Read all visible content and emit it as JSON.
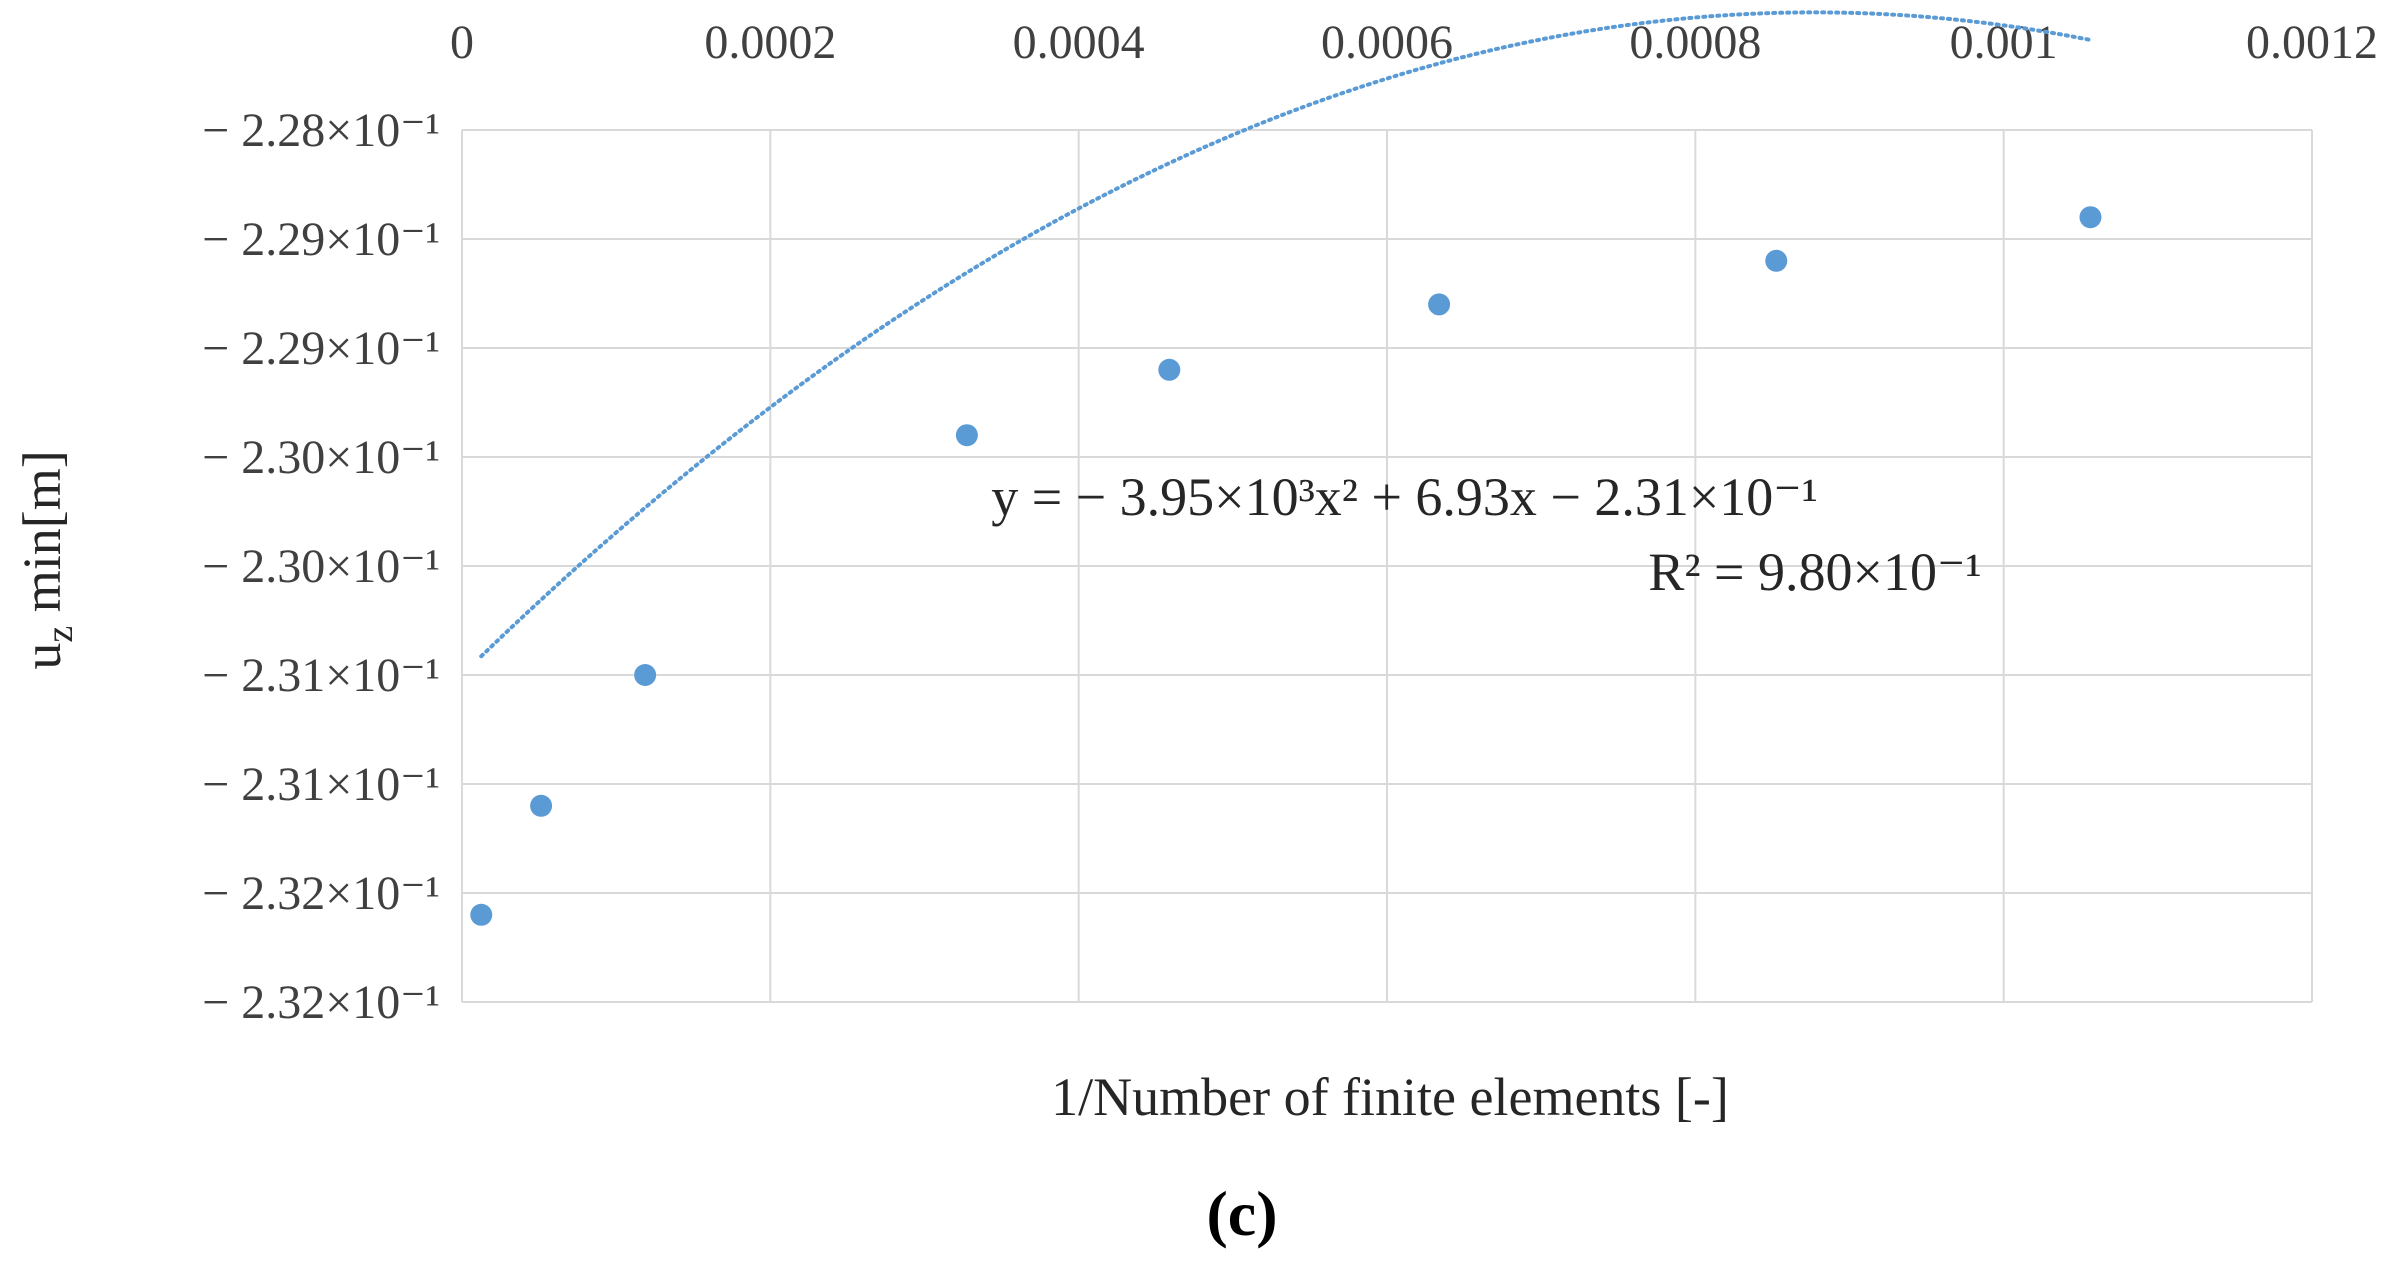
{
  "chart_data": {
    "type": "scatter",
    "title": "",
    "xlabel": "1/Number of finite elements [-]",
    "ylabel_main": "u",
    "ylabel_sub": "z",
    "ylabel_rest": " min[m]",
    "panel_label": "(c)",
    "xlim": [
      0,
      0.0012
    ],
    "ylim": [
      -0.2325,
      -0.2285
    ],
    "x_axis_position": "top",
    "grid": true,
    "x_ticks": [
      {
        "value": 0,
        "label": "0"
      },
      {
        "value": 0.0002,
        "label": "0.0002"
      },
      {
        "value": 0.0004,
        "label": "0.0004"
      },
      {
        "value": 0.0006,
        "label": "0.0006"
      },
      {
        "value": 0.0008,
        "label": "0.0008"
      },
      {
        "value": 0.001,
        "label": "0.001"
      },
      {
        "value": 0.0012,
        "label": "0.0012"
      }
    ],
    "y_ticks": [
      {
        "value": -0.2285,
        "label": "− 2.28×10⁻¹"
      },
      {
        "value": -0.229,
        "label": "− 2.29×10⁻¹"
      },
      {
        "value": -0.2295,
        "label": "− 2.29×10⁻¹"
      },
      {
        "value": -0.23,
        "label": "− 2.30×10⁻¹"
      },
      {
        "value": -0.2305,
        "label": "− 2.30×10⁻¹"
      },
      {
        "value": -0.231,
        "label": "− 2.31×10⁻¹"
      },
      {
        "value": -0.2315,
        "label": "− 2.31×10⁻¹"
      },
      {
        "value": -0.232,
        "label": "− 2.32×10⁻¹"
      },
      {
        "value": -0.2325,
        "label": "− 2.32×10⁻¹"
      }
    ],
    "series": [
      {
        "marker_color": "#5b9bd5",
        "points": [
          {
            "x": 1.25e-05,
            "y": -0.2321
          },
          {
            "x": 5.13e-05,
            "y": -0.2316
          },
          {
            "x": 0.0001188,
            "y": -0.231
          },
          {
            "x": 0.0003275,
            "y": -0.2299
          },
          {
            "x": 0.0004588,
            "y": -0.2296
          },
          {
            "x": 0.0006338,
            "y": -0.2293
          },
          {
            "x": 0.0008525,
            "y": -0.2291
          },
          {
            "x": 0.0010563,
            "y": -0.2289
          }
        ]
      }
    ],
    "trendline": {
      "type": "polynomial",
      "coefficients": [
        -3950,
        6.93,
        -0.231
      ],
      "color": "#5b9bd5",
      "style": "dotted",
      "equation_text": "y = − 3.95×10³x² + 6.93x − 2.31×10⁻¹",
      "r2_text": "R² = 9.80×10⁻¹"
    }
  }
}
